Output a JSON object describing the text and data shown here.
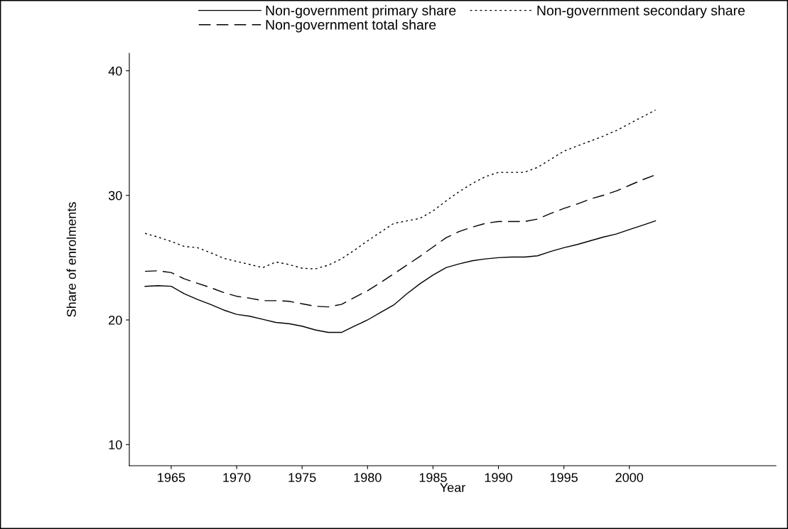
{
  "chart_data": {
    "type": "line",
    "xlabel": "Year",
    "ylabel": "Share of enrolments",
    "x": [
      1963,
      1964,
      1965,
      1966,
      1967,
      1968,
      1969,
      1970,
      1971,
      1972,
      1973,
      1974,
      1975,
      1976,
      1977,
      1978,
      1979,
      1980,
      1981,
      1982,
      1983,
      1984,
      1985,
      1986,
      1987,
      1988,
      1989,
      1990,
      1991,
      1992,
      1993,
      1994,
      1995,
      1996,
      1997,
      1998,
      1999,
      2000,
      2001,
      2002
    ],
    "series": [
      {
        "name": "Non-government primary share",
        "color": "#000000",
        "line_style": "solid",
        "values": [
          22.7,
          22.75,
          22.7,
          22.1,
          21.65,
          21.25,
          20.8,
          20.45,
          20.3,
          20.05,
          19.8,
          19.7,
          19.5,
          19.2,
          19.0,
          19.0,
          19.5,
          20.0,
          20.6,
          21.2,
          22.1,
          22.9,
          23.6,
          24.2,
          24.5,
          24.75,
          24.9,
          25.0,
          25.05,
          25.05,
          25.15,
          25.5,
          25.8,
          26.05,
          26.35,
          26.65,
          26.9,
          27.25,
          27.6,
          27.95
        ]
      },
      {
        "name": "Non-government secondary share",
        "color": "#000000",
        "line_style": "dotted",
        "values": [
          26.95,
          26.65,
          26.3,
          25.9,
          25.8,
          25.4,
          24.95,
          24.7,
          24.45,
          24.2,
          24.65,
          24.45,
          24.15,
          24.1,
          24.4,
          24.9,
          25.6,
          26.35,
          27.05,
          27.75,
          27.95,
          28.15,
          28.75,
          29.55,
          30.3,
          30.95,
          31.5,
          31.85,
          31.85,
          31.85,
          32.25,
          32.9,
          33.55,
          33.95,
          34.35,
          34.75,
          35.2,
          35.75,
          36.3,
          36.85
        ]
      },
      {
        "name": "Non-government total share",
        "color": "#000000",
        "line_style": "dashed",
        "values": [
          23.9,
          23.95,
          23.8,
          23.3,
          22.95,
          22.6,
          22.2,
          21.9,
          21.75,
          21.55,
          21.55,
          21.5,
          21.3,
          21.1,
          21.05,
          21.25,
          21.8,
          22.35,
          23.0,
          23.7,
          24.4,
          25.1,
          25.85,
          26.6,
          27.1,
          27.45,
          27.75,
          27.9,
          27.9,
          27.9,
          28.1,
          28.55,
          28.95,
          29.3,
          29.7,
          30.0,
          30.35,
          30.8,
          31.25,
          31.65
        ]
      }
    ],
    "xlim": [
      1961.8,
      2011.2
    ],
    "xticks": [
      1965,
      1970,
      1975,
      1980,
      1985,
      1990,
      1995,
      2000
    ],
    "ylim": [
      8.3,
      41.4
    ],
    "yticks": [
      10,
      20,
      30,
      40
    ],
    "grid": false,
    "legend": "top",
    "marker": "none"
  }
}
